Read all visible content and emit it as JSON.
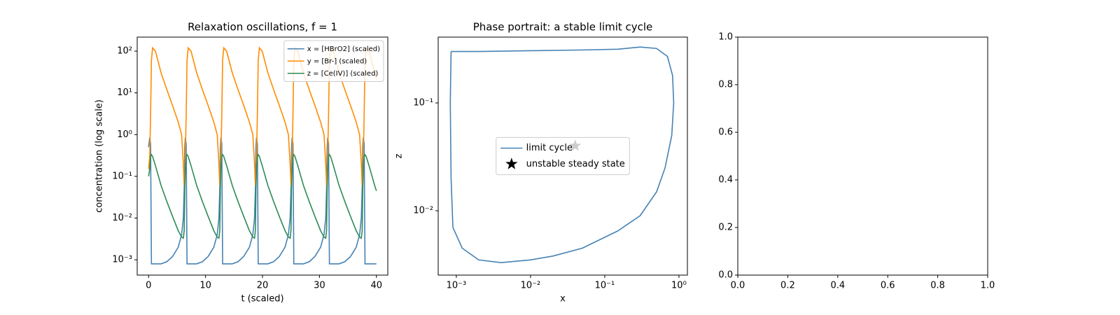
{
  "chart_data": [
    {
      "type": "line",
      "title": "Relaxation oscillations, f = 1",
      "xlabel": "t (scaled)",
      "ylabel": "concentration (log scale)",
      "yscale": "log",
      "legend": "upper right",
      "xlim": [
        -2,
        42
      ],
      "xticks": [
        0,
        10,
        20,
        30,
        40
      ],
      "ylim": [
        0.00043,
        217
      ],
      "yticks": [
        {
          "value": 0.001,
          "label": "10⁻³"
        },
        {
          "value": 0.01,
          "label": "10⁻²"
        },
        {
          "value": 0.1,
          "label": "10⁻¹"
        },
        {
          "value": 1,
          "label": "10⁰"
        },
        {
          "value": 10,
          "label": "10¹"
        },
        {
          "value": 100,
          "label": "10²"
        }
      ],
      "x": [
        0,
        0.2,
        0.35,
        0.5,
        0.7,
        1.2,
        2.2,
        3.2,
        4.2,
        5.2,
        5.8,
        6.1,
        6.25,
        6.35,
        6.45,
        6.6,
        6.75,
        6.95,
        7.45,
        8.45,
        9.45,
        10.45,
        11.45,
        12.05,
        12.35,
        12.5,
        12.6,
        12.7,
        12.85,
        13,
        13.2,
        13.7,
        14.7,
        15.7,
        16.7,
        17.7,
        18.3,
        18.6,
        18.75,
        18.85,
        18.95,
        19.1,
        19.25,
        19.45,
        19.95,
        20.95,
        21.95,
        22.95,
        23.95,
        24.55,
        24.85,
        25,
        25.1,
        25.2,
        25.35,
        25.5,
        25.7,
        26.2,
        27.2,
        28.2,
        29.2,
        30.2,
        30.8,
        31.1,
        31.25,
        31.35,
        31.45,
        31.6,
        31.75,
        31.95,
        32.45,
        33.45,
        34.45,
        35.45,
        36.45,
        37.05,
        37.35,
        37.5,
        37.6,
        37.7,
        37.85,
        38,
        38.2,
        38.7,
        39.7,
        40
      ],
      "series": [
        {
          "name": "x = [HBrO2] (scaled)",
          "color": "#4682b4",
          "values": [
            0.5,
            0.85,
            0.6,
            0.0008,
            0.0008,
            0.0008,
            0.0008,
            0.0009,
            0.0012,
            0.002,
            0.004,
            0.01,
            0.05,
            0.5,
            0.85,
            0.6,
            0.0008,
            0.0008,
            0.0008,
            0.0008,
            0.0009,
            0.0012,
            0.002,
            0.004,
            0.01,
            0.05,
            0.5,
            0.85,
            0.6,
            0.0008,
            0.0008,
            0.0008,
            0.0008,
            0.0009,
            0.0012,
            0.002,
            0.004,
            0.01,
            0.05,
            0.5,
            0.85,
            0.6,
            0.0008,
            0.0008,
            0.0008,
            0.0008,
            0.0009,
            0.0012,
            0.002,
            0.004,
            0.01,
            0.05,
            0.5,
            0.85,
            0.6,
            0.0008,
            0.0008,
            0.0008,
            0.0008,
            0.0009,
            0.0012,
            0.002,
            0.004,
            0.01,
            0.05,
            0.5,
            0.85,
            0.6,
            0.0008,
            0.0008,
            0.0008,
            0.0008,
            0.0009,
            0.0012,
            0.002,
            0.004,
            0.01,
            0.05,
            0.5,
            0.85,
            0.6,
            0.0008,
            0.0008,
            0.0008,
            0.0008,
            0.0008
          ]
        },
        {
          "name": "y = [Br-] (scaled)",
          "color": "#ff8c00",
          "values": [
            0.15,
            0.3,
            3,
            60,
            120,
            100,
            30,
            12,
            5,
            2,
            1,
            0.2,
            0.06,
            0.08,
            0.3,
            3,
            60,
            120,
            100,
            30,
            12,
            5,
            2,
            1,
            0.2,
            0.06,
            0.08,
            0.3,
            3,
            60,
            120,
            100,
            30,
            12,
            5,
            2,
            1,
            0.2,
            0.06,
            0.08,
            0.3,
            3,
            60,
            120,
            100,
            30,
            12,
            5,
            2,
            1,
            0.2,
            0.06,
            0.08,
            0.3,
            3,
            60,
            120,
            100,
            30,
            12,
            5,
            2,
            1,
            0.2,
            0.06,
            0.08,
            0.3,
            3,
            60,
            120,
            100,
            30,
            12,
            5,
            2,
            1,
            0.2,
            0.06,
            0.08,
            0.3,
            3,
            60,
            120,
            100,
            30,
            22
          ]
        },
        {
          "name": "z = [Ce(IV)] (scaled)",
          "color": "#2e8b57",
          "values": [
            0.1,
            0.15,
            0.3,
            0.33,
            0.3,
            0.18,
            0.06,
            0.025,
            0.011,
            0.005,
            0.0035,
            0.0033,
            0.005,
            0.05,
            0.15,
            0.3,
            0.33,
            0.3,
            0.18,
            0.06,
            0.025,
            0.011,
            0.005,
            0.0035,
            0.0033,
            0.005,
            0.05,
            0.15,
            0.3,
            0.33,
            0.3,
            0.18,
            0.06,
            0.025,
            0.011,
            0.005,
            0.0035,
            0.0033,
            0.005,
            0.05,
            0.15,
            0.3,
            0.33,
            0.3,
            0.18,
            0.06,
            0.025,
            0.011,
            0.005,
            0.0035,
            0.0033,
            0.005,
            0.05,
            0.15,
            0.3,
            0.33,
            0.3,
            0.18,
            0.06,
            0.025,
            0.011,
            0.005,
            0.0035,
            0.0033,
            0.005,
            0.05,
            0.15,
            0.3,
            0.33,
            0.3,
            0.18,
            0.06,
            0.025,
            0.011,
            0.005,
            0.0035,
            0.0033,
            0.005,
            0.05,
            0.15,
            0.3,
            0.33,
            0.3,
            0.18,
            0.06,
            0.045
          ]
        }
      ]
    },
    {
      "type": "line",
      "title": "Phase portrait: a stable limit cycle",
      "xlabel": "x",
      "ylabel": "z",
      "xscale": "log",
      "yscale": "log",
      "legend": "center",
      "xlim": [
        0.00057,
        1.3
      ],
      "xticks": [
        {
          "value": 0.001,
          "label": "10⁻³"
        },
        {
          "value": 0.01,
          "label": "10⁻²"
        },
        {
          "value": 0.1,
          "label": "10⁻¹"
        },
        {
          "value": 1,
          "label": "10⁰"
        }
      ],
      "ylim": [
        0.00253,
        0.408
      ],
      "yticks": [
        {
          "value": 0.01,
          "label": "10⁻²"
        },
        {
          "value": 0.1,
          "label": "10⁻¹"
        }
      ],
      "series": [
        {
          "name": "limit cycle",
          "color": "#4682b4",
          "x": [
            0.00085,
            0.002,
            0.01,
            0.05,
            0.15,
            0.3,
            0.5,
            0.7,
            0.82,
            0.85,
            0.8,
            0.65,
            0.5,
            0.3,
            0.15,
            0.05,
            0.02,
            0.01,
            0.004,
            0.002,
            0.0012,
            0.0009,
            0.00085,
            0.00083,
            0.00085
          ],
          "values": [
            0.3,
            0.3,
            0.305,
            0.31,
            0.315,
            0.33,
            0.32,
            0.27,
            0.18,
            0.1,
            0.05,
            0.025,
            0.015,
            0.009,
            0.0065,
            0.0045,
            0.0038,
            0.0035,
            0.0033,
            0.0035,
            0.0045,
            0.007,
            0.02,
            0.1,
            0.3
          ]
        },
        {
          "name": "unstable steady state",
          "color": "#000000",
          "marker": "star",
          "x": [
            0.04
          ],
          "values": [
            0.04
          ]
        }
      ]
    },
    {
      "type": "line",
      "xlim": [
        0,
        1
      ],
      "xticks": [
        {
          "value": 0,
          "label": "0.0"
        },
        0.2,
        0.4,
        0.6,
        0.8,
        {
          "value": 1,
          "label": "1.0"
        }
      ],
      "ylim": [
        0,
        1
      ],
      "yticks": [
        {
          "value": 0,
          "label": "0.0"
        },
        0.2,
        0.4,
        0.6,
        0.8,
        {
          "value": 1,
          "label": "1.0"
        }
      ]
    }
  ]
}
